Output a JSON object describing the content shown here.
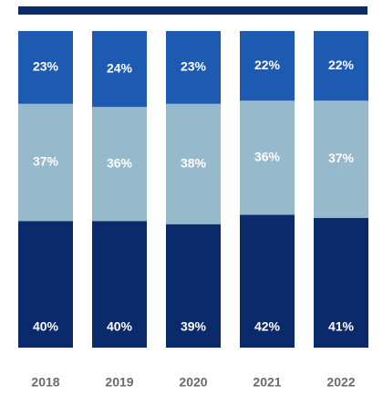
{
  "chart_data": {
    "type": "bar",
    "stacked": true,
    "percent": true,
    "categories": [
      "2018",
      "2019",
      "2020",
      "2021",
      "2022"
    ],
    "series": [
      {
        "key": "bottom",
        "values": [
          40,
          40,
          39,
          42,
          41
        ],
        "color": "#0b2a6b"
      },
      {
        "key": "middle",
        "values": [
          37,
          36,
          38,
          36,
          37
        ],
        "color": "#97b9cc"
      },
      {
        "key": "top",
        "values": [
          23,
          24,
          23,
          22,
          22
        ],
        "color": "#1d5bb3"
      }
    ],
    "value_suffix": "%",
    "ylim": [
      0,
      100
    ],
    "grid": false,
    "legend": "none",
    "header_bar_color": "#0b2a6b"
  }
}
